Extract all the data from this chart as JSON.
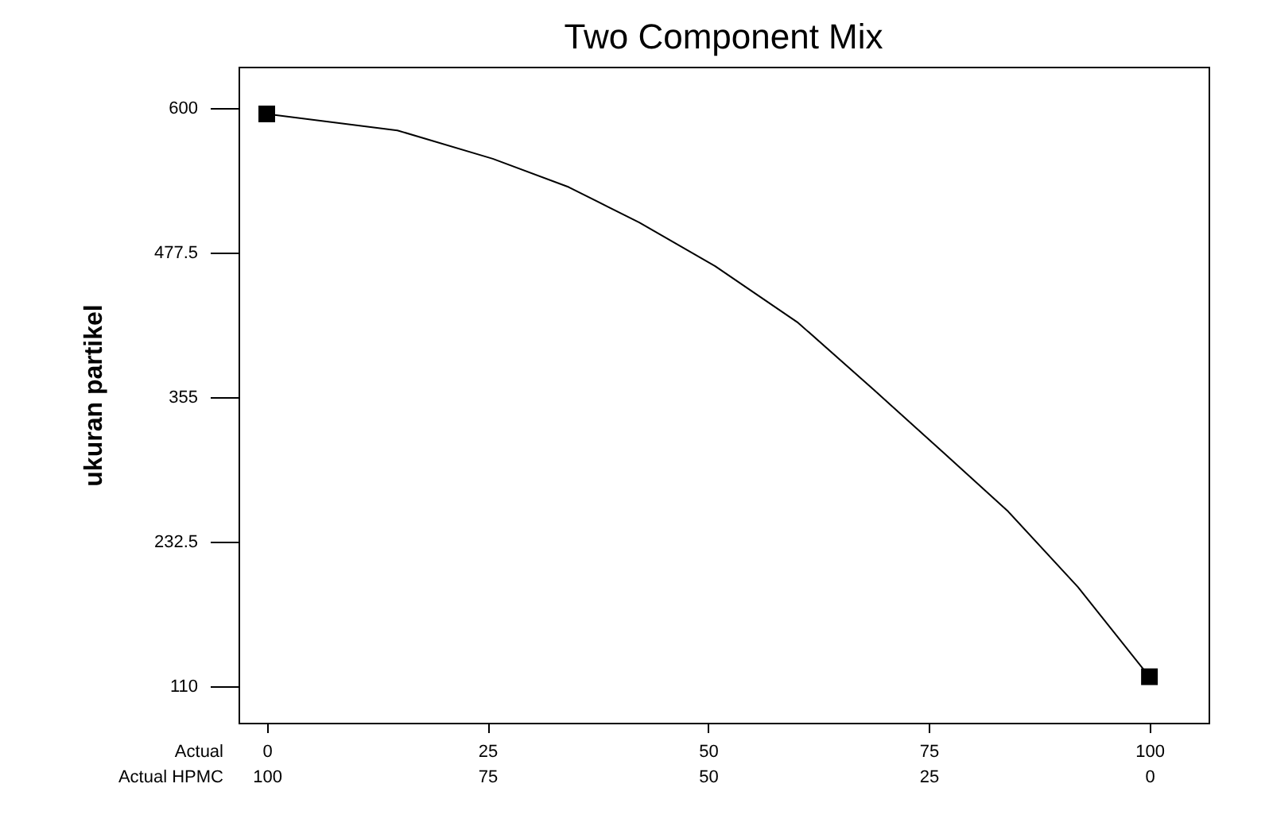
{
  "chart_data": {
    "type": "line",
    "title": "Two Component Mix",
    "xlabel": "Actual",
    "x2label": "Actual HPMC",
    "ylabel": "ukuran partikel",
    "xlim": [
      -3.2,
      106.7
    ],
    "xticks": [
      0,
      25,
      50,
      75,
      100
    ],
    "x2lim": [
      103.2,
      -6.7
    ],
    "x2ticks": [
      100,
      75,
      50,
      25,
      0
    ],
    "ylim": [
      79,
      635
    ],
    "yticks": [
      110,
      232.5,
      355,
      477.5,
      600
    ],
    "grid": false,
    "series": [
      {
        "color": "#000000",
        "marker": "none",
        "line_style": "solid",
        "x": [
          0,
          14.8,
          25.6,
          34.2,
          42.2,
          50.8,
          60.2,
          68.8,
          76.8,
          84,
          91.9,
          100
        ],
        "values": [
          595,
          581,
          557,
          533,
          503,
          466,
          418,
          361,
          307,
          258,
          194,
          118
        ]
      },
      {
        "type": "scatter",
        "color": "#000000",
        "marker": "square",
        "x": [
          0,
          100
        ],
        "values": [
          595,
          118
        ]
      }
    ]
  }
}
